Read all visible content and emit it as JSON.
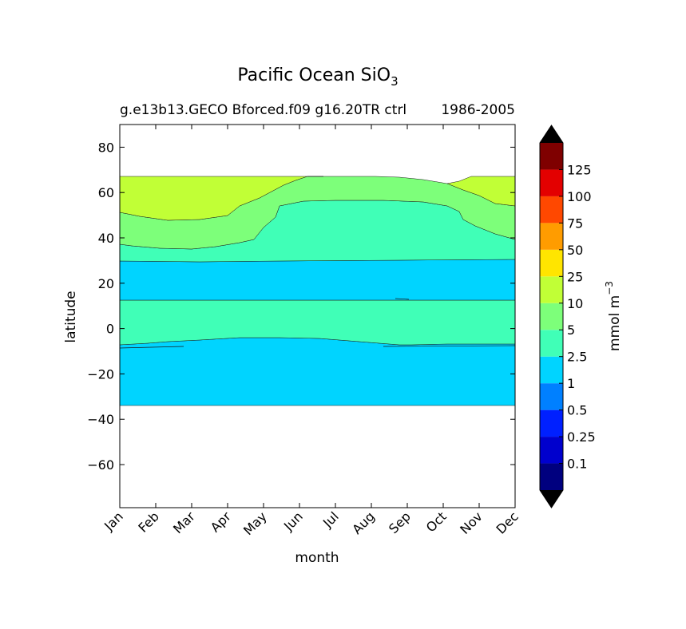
{
  "chart_data": {
    "type": "heatmap",
    "plot_style": "filled-contour",
    "title": "Pacific Ocean SiO",
    "title_subscript": "3",
    "subtitle_left": "g.e13b13.GECO Bforced.f09 g16.20TR ctrl",
    "subtitle_right": "1986-2005",
    "xlabel": "month",
    "ylabel": "latitude",
    "x_categories": [
      "Jan",
      "Feb",
      "Mar",
      "Apr",
      "May",
      "Jun",
      "Jul",
      "Aug",
      "Sep",
      "Oct",
      "Nov",
      "Dec"
    ],
    "xlim": [
      0,
      11
    ],
    "ylim": [
      -79,
      90
    ],
    "yticks": [
      80,
      60,
      40,
      20,
      0,
      -20,
      -40,
      -60
    ],
    "ytick_labels": [
      "80",
      "60",
      "40",
      "20",
      "0",
      "−20",
      "−40",
      "−60"
    ],
    "data_lat_range": [
      -34,
      67
    ],
    "colorbar": {
      "label": "mmol m",
      "label_superscript": "−3",
      "levels": [
        "0.1",
        "0.25",
        "0.5",
        "1",
        "2.5",
        "5",
        "10",
        "25",
        "50",
        "75",
        "100",
        "125"
      ],
      "colors": [
        "#00007f",
        "#0000cd",
        "#0020ff",
        "#0080ff",
        "#00d4ff",
        "#40ffb7",
        "#7dff7a",
        "#c1ff36",
        "#ffe500",
        "#ff9c00",
        "#ff4800",
        "#e30000",
        "#7f0000"
      ],
      "under_color": "#000000",
      "over_color": "#000000",
      "extend": "both"
    },
    "regions": [
      {
        "name": "1-2.5",
        "color": "#00d4ff",
        "bounds": "-34 to ~-4 latitude and 13 to 30 latitude"
      },
      {
        "name": "2.5-5",
        "color": "#40ffb7",
        "bounds": "~-5 to 13 latitude and 30 to ~56 latitude (shrinking in winter)"
      },
      {
        "name": "5-10",
        "color": "#7dff7a",
        "bounds": "~35 to ~60 latitude"
      },
      {
        "name": "10-25",
        "color": "#c1ff36",
        "bounds": "~48 to 67 latitude, mainly Jan-May and Oct-Dec"
      }
    ]
  }
}
